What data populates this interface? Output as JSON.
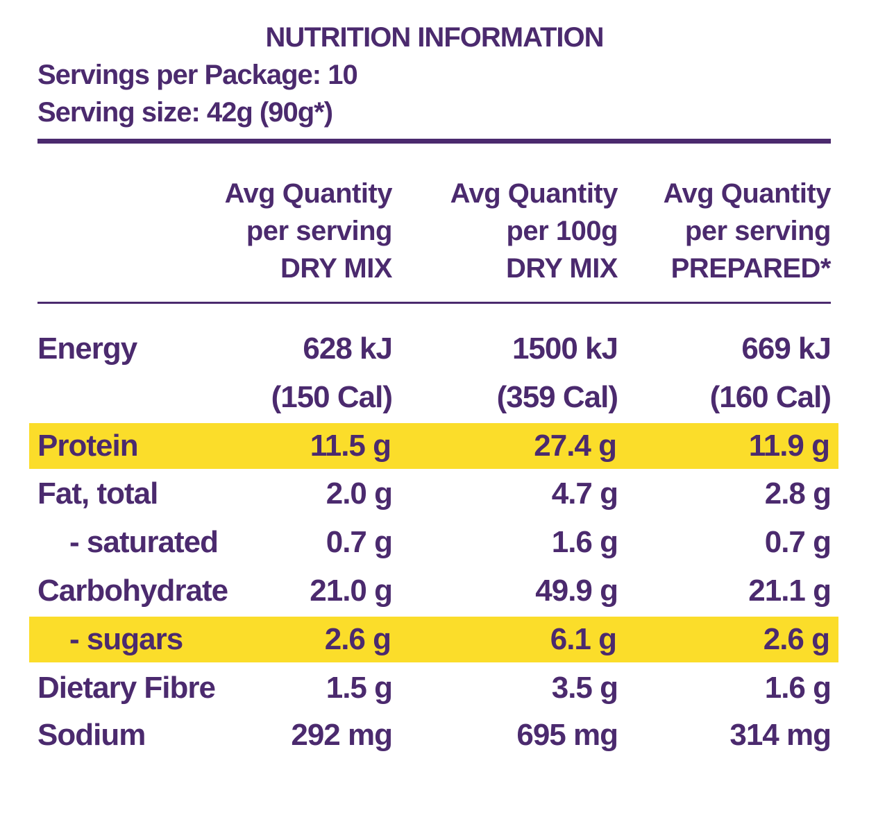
{
  "title": "NUTRITION INFORMATION",
  "servings_per_package": "Servings per Package: 10",
  "serving_size": "Serving size: 42g (90g*)",
  "colors": {
    "text": "#4b2a6e",
    "highlight": "#fbdd2a"
  },
  "columns": [
    {
      "line1": "Avg  Quantity",
      "line2": "per serving",
      "line3": "DRY MIX"
    },
    {
      "line1": "Avg  Quantity",
      "line2": "per 100g",
      "line3": "DRY MIX"
    },
    {
      "line1": "Avg  Quantity",
      "line2": "per serving",
      "line3": "PREPARED*"
    }
  ],
  "rows": [
    {
      "label": "Energy",
      "v": [
        "628 kJ",
        "1500 kJ",
        "669 kJ"
      ]
    },
    {
      "label": "",
      "v": [
        "(150 Cal)",
        "(359 Cal)",
        "(160 Cal)"
      ]
    },
    {
      "label": "Protein",
      "v": [
        "11.5 g",
        "27.4 g",
        "11.9 g"
      ],
      "highlight": true
    },
    {
      "label": "Fat, total",
      "v": [
        "2.0 g",
        "4.7 g",
        "2.8 g"
      ]
    },
    {
      "label": "- saturated",
      "v": [
        "0.7 g",
        "1.6 g",
        "0.7 g"
      ]
    },
    {
      "label": "Carbohydrate",
      "v": [
        "21.0 g",
        "49.9 g",
        "21.1 g"
      ]
    },
    {
      "label": "- sugars",
      "v": [
        "2.6 g",
        "6.1 g",
        "2.6 g"
      ],
      "highlight": true
    },
    {
      "label": "Dietary Fibre",
      "v": [
        "1.5 g",
        "3.5 g",
        "1.6 g"
      ]
    },
    {
      "label": "Sodium",
      "v": [
        "292 mg",
        "695 mg",
        "314 mg"
      ]
    }
  ]
}
